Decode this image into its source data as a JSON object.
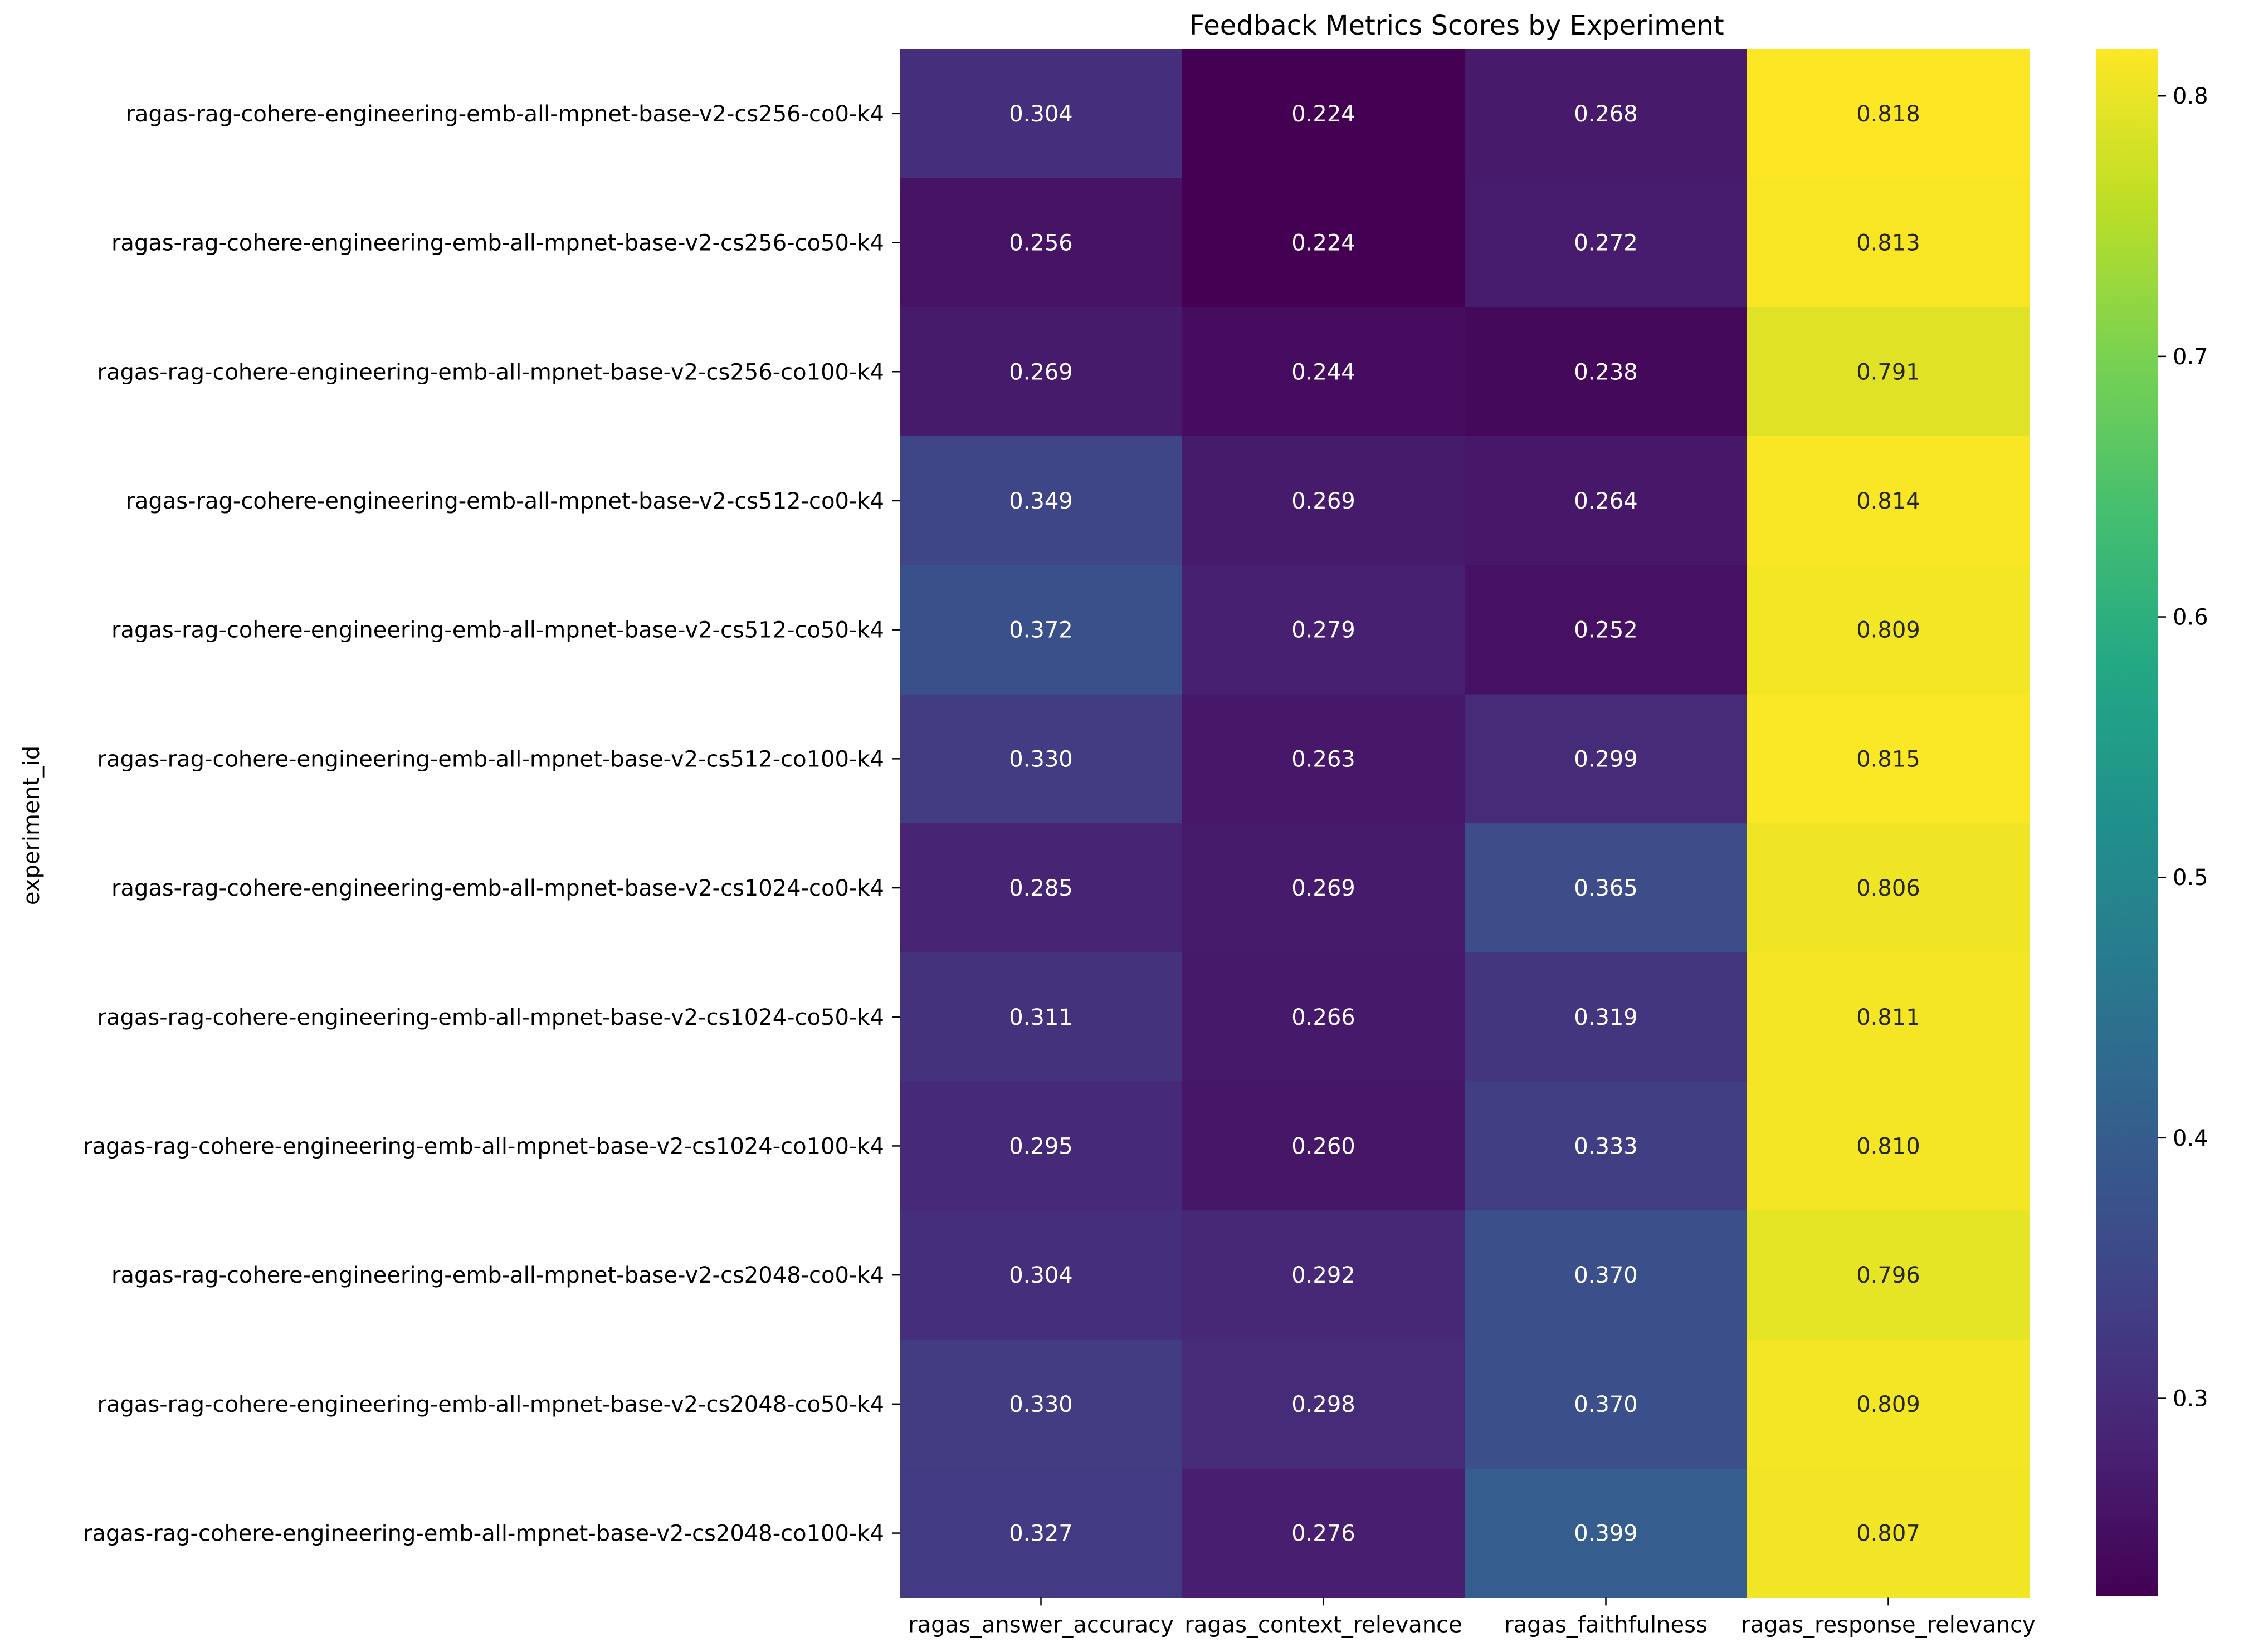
{
  "chart_data": {
    "type": "heatmap",
    "title": "Feedback Metrics Scores by Experiment",
    "xlabel": "",
    "ylabel": "experiment_id",
    "columns": [
      "ragas_answer_accuracy",
      "ragas_context_relevance",
      "ragas_faithfulness",
      "ragas_response_relevancy"
    ],
    "rows": [
      "ragas-rag-cohere-engineering-emb-all-mpnet-base-v2-cs256-co0-k4",
      "ragas-rag-cohere-engineering-emb-all-mpnet-base-v2-cs256-co50-k4",
      "ragas-rag-cohere-engineering-emb-all-mpnet-base-v2-cs256-co100-k4",
      "ragas-rag-cohere-engineering-emb-all-mpnet-base-v2-cs512-co0-k4",
      "ragas-rag-cohere-engineering-emb-all-mpnet-base-v2-cs512-co50-k4",
      "ragas-rag-cohere-engineering-emb-all-mpnet-base-v2-cs512-co100-k4",
      "ragas-rag-cohere-engineering-emb-all-mpnet-base-v2-cs1024-co0-k4",
      "ragas-rag-cohere-engineering-emb-all-mpnet-base-v2-cs1024-co50-k4",
      "ragas-rag-cohere-engineering-emb-all-mpnet-base-v2-cs1024-co100-k4",
      "ragas-rag-cohere-engineering-emb-all-mpnet-base-v2-cs2048-co0-k4",
      "ragas-rag-cohere-engineering-emb-all-mpnet-base-v2-cs2048-co50-k4",
      "ragas-rag-cohere-engineering-emb-all-mpnet-base-v2-cs2048-co100-k4"
    ],
    "values": [
      [
        0.304,
        0.224,
        0.268,
        0.818
      ],
      [
        0.256,
        0.224,
        0.272,
        0.813
      ],
      [
        0.269,
        0.244,
        0.238,
        0.791
      ],
      [
        0.349,
        0.269,
        0.264,
        0.814
      ],
      [
        0.372,
        0.279,
        0.252,
        0.809
      ],
      [
        0.33,
        0.263,
        0.299,
        0.815
      ],
      [
        0.285,
        0.269,
        0.365,
        0.806
      ],
      [
        0.311,
        0.266,
        0.319,
        0.811
      ],
      [
        0.295,
        0.26,
        0.333,
        0.81
      ],
      [
        0.304,
        0.292,
        0.37,
        0.796
      ],
      [
        0.33,
        0.298,
        0.37,
        0.809
      ],
      [
        0.327,
        0.276,
        0.399,
        0.807
      ]
    ],
    "colormap": "viridis",
    "vmin": 0.224,
    "vmax": 0.818,
    "colorbar_ticks": [
      0.3,
      0.4,
      0.5,
      0.6,
      0.7,
      0.8
    ],
    "colorbar_tick_labels": [
      "0.3",
      "0.4",
      "0.5",
      "0.6",
      "0.7",
      "0.8"
    ],
    "value_format_decimals": 3,
    "grid": false,
    "legend": "colorbar-right"
  }
}
